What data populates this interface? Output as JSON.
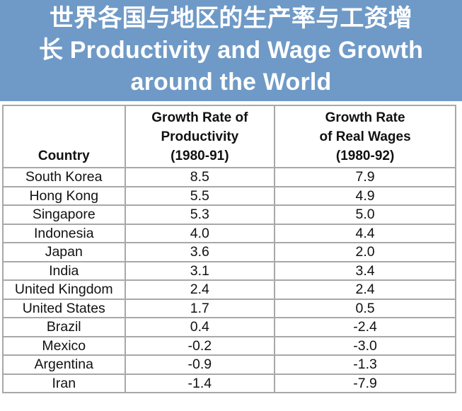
{
  "title": {
    "line1": "世界各国与地区的生产率与工资增",
    "line2": "长 Productivity and Wage Growth",
    "line3": "around the World"
  },
  "table": {
    "headers": {
      "country": [
        "Country"
      ],
      "productivity": [
        "Growth Rate of",
        "Productivity",
        "(1980-91)"
      ],
      "wages": [
        "Growth Rate",
        "of Real Wages",
        "(1980-92)"
      ]
    },
    "rows": [
      {
        "country": "South Korea",
        "productivity": "8.5",
        "wages": "7.9"
      },
      {
        "country": "Hong Kong",
        "productivity": "5.5",
        "wages": "4.9"
      },
      {
        "country": "Singapore",
        "productivity": "5.3",
        "wages": "5.0"
      },
      {
        "country": "Indonesia",
        "productivity": "4.0",
        "wages": "4.4"
      },
      {
        "country": "Japan",
        "productivity": "3.6",
        "wages": "2.0"
      },
      {
        "country": "India",
        "productivity": "3.1",
        "wages": "3.4"
      },
      {
        "country": "United Kingdom",
        "productivity": "2.4",
        "wages": "2.4"
      },
      {
        "country": "United States",
        "productivity": "1.7",
        "wages": "0.5"
      },
      {
        "country": "Brazil",
        "productivity": "0.4",
        "wages": "-2.4"
      },
      {
        "country": "Mexico",
        "productivity": "-0.2",
        "wages": "-3.0"
      },
      {
        "country": "Argentina",
        "productivity": "-0.9",
        "wages": "-1.3"
      },
      {
        "country": "Iran",
        "productivity": "-1.4",
        "wages": "-7.9"
      }
    ]
  },
  "colors": {
    "banner_background": "#6f9ac7",
    "banner_text": "#ffffff",
    "grid_lines": "#a8a8a8"
  }
}
